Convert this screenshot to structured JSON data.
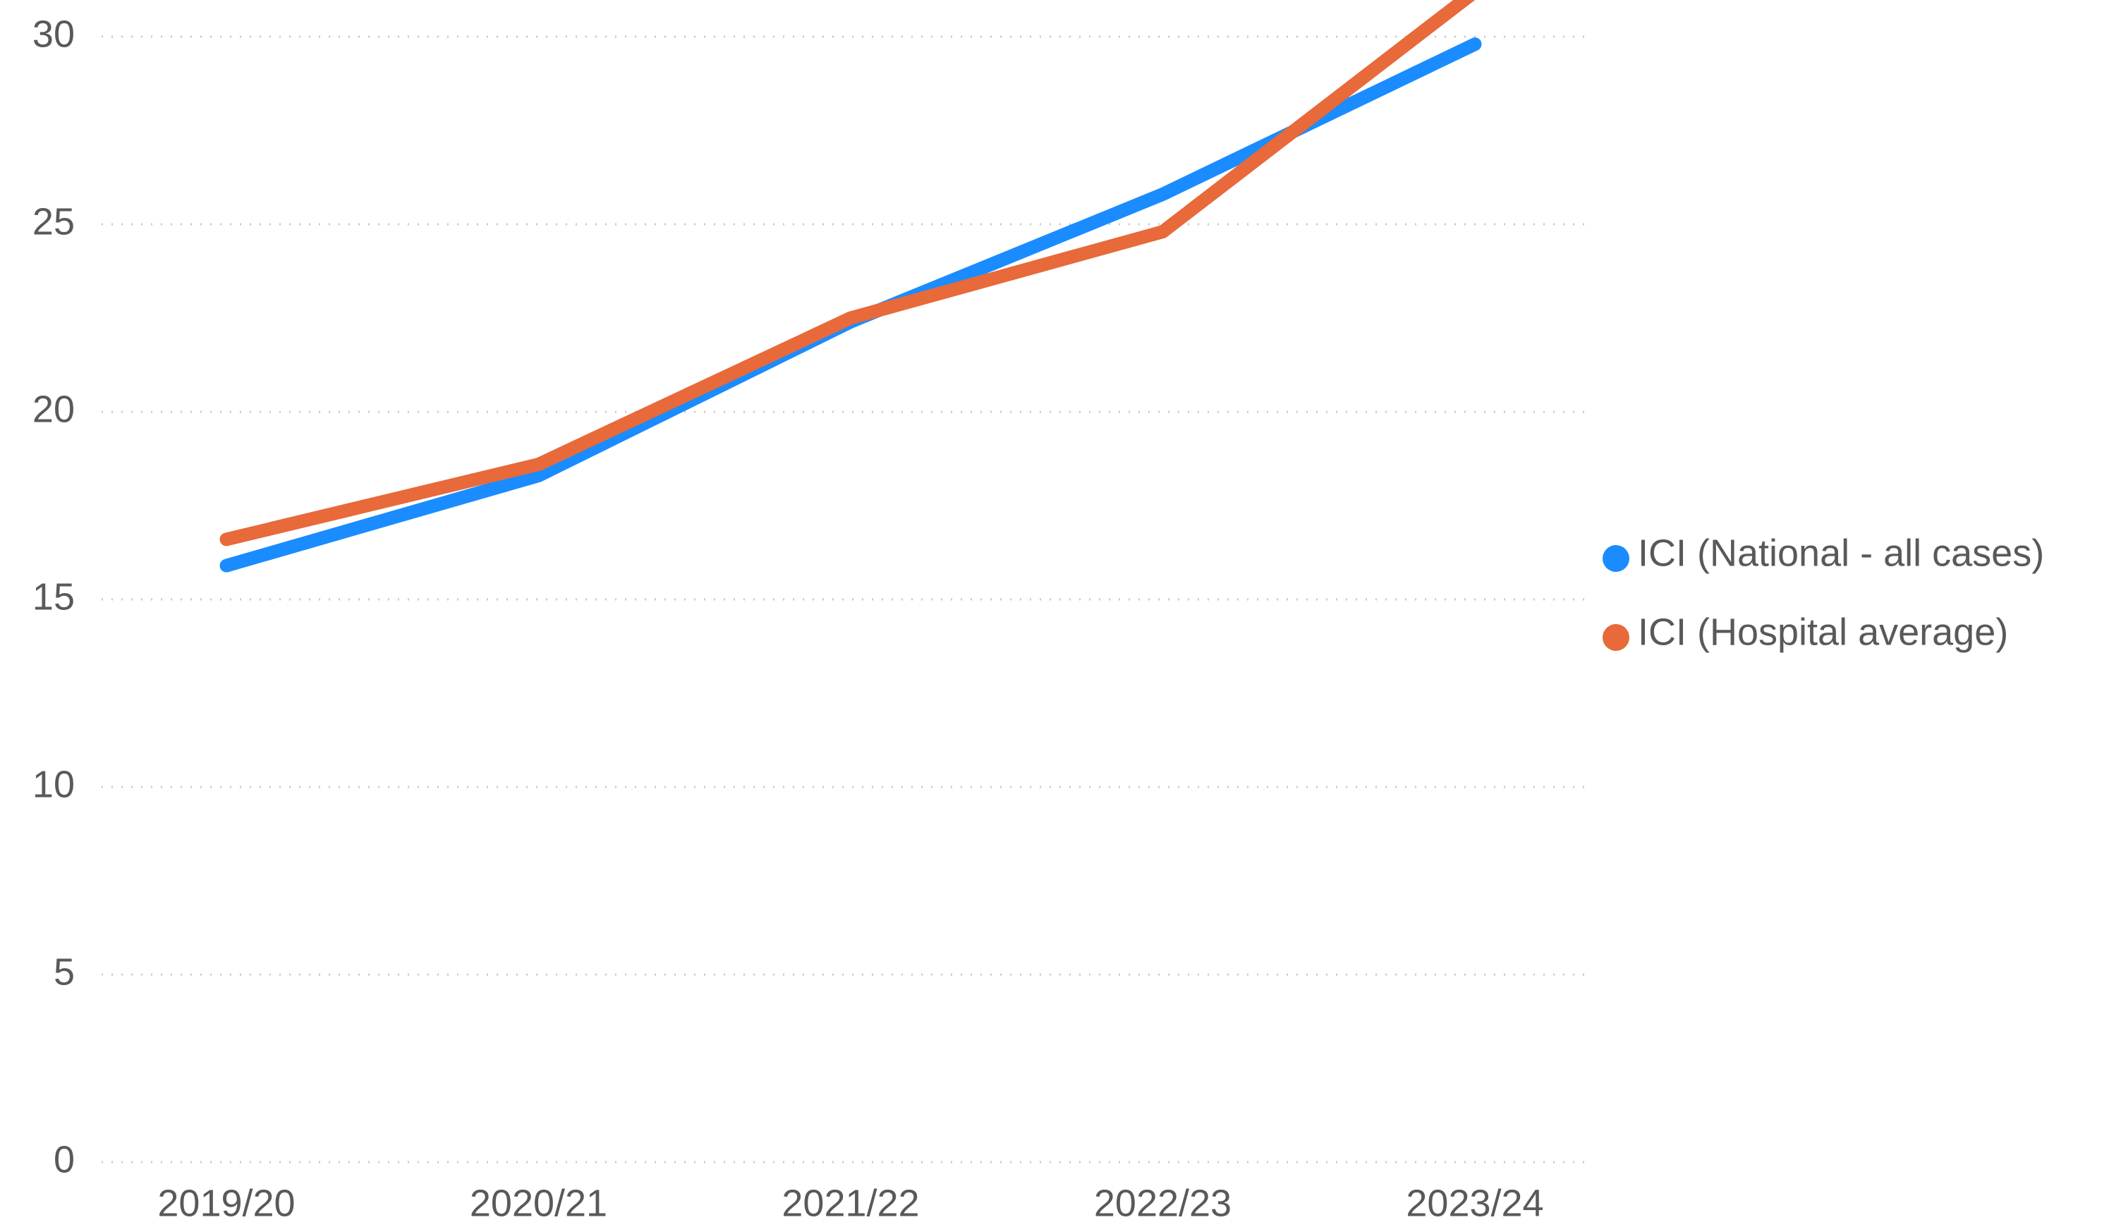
{
  "chart_data": {
    "type": "line",
    "categories": [
      "2019/20",
      "2020/21",
      "2021/22",
      "2022/23",
      "2023/24"
    ],
    "series": [
      {
        "name": "ICI (National - all cases)",
        "color": "#1a8cff",
        "values": [
          15.9,
          18.3,
          22.4,
          25.8,
          29.8
        ]
      },
      {
        "name": "ICI (Hospital average)",
        "color": "#e8693a",
        "values": [
          16.6,
          18.6,
          22.5,
          24.8,
          31.2
        ]
      }
    ],
    "ylim": [
      0,
      30
    ],
    "yticks": [
      0,
      5,
      10,
      15,
      20,
      25,
      30
    ],
    "grid": true,
    "legend": "right"
  }
}
